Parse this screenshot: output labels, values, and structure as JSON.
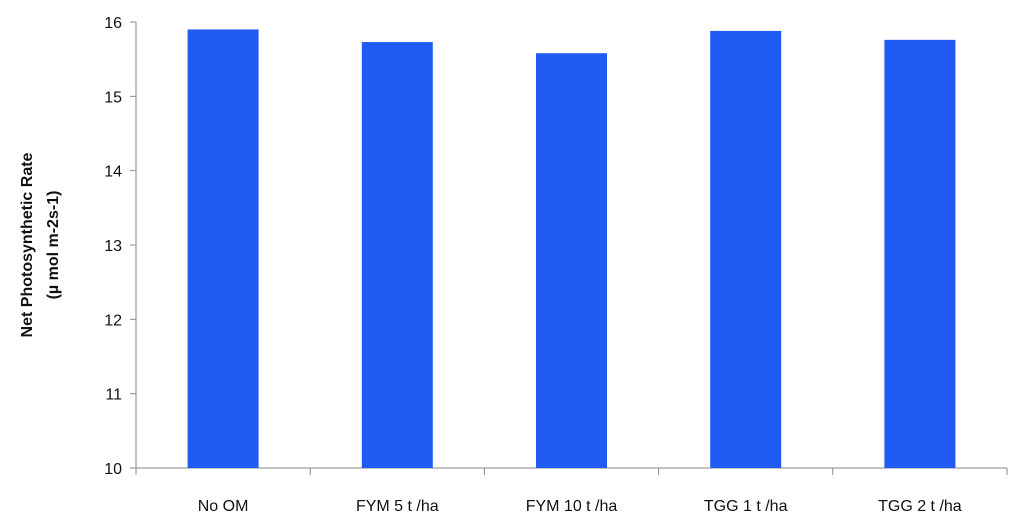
{
  "chart_data": {
    "type": "bar",
    "title": "",
    "xlabel": "",
    "ylabel_line1": "Net Photosynthetic Rate",
    "ylabel_line2": "(µ mol m-2s-1)",
    "categories": [
      "No OM",
      "FYM 5 t /ha",
      "FYM 10 t /ha",
      "TGG 1 t /ha",
      "TGG 2 t /ha"
    ],
    "series": [
      {
        "values": [
          15.9,
          15.73,
          15.58,
          15.88,
          15.76
        ]
      }
    ],
    "ylim": [
      10,
      16
    ],
    "yticks": [
      "10",
      "11",
      "12",
      "13",
      "14",
      "15",
      "16"
    ],
    "grid": false,
    "legend": "none",
    "colors": {
      "bar": "#1f5bf2",
      "axis": "#888888",
      "text": "#111111"
    }
  }
}
